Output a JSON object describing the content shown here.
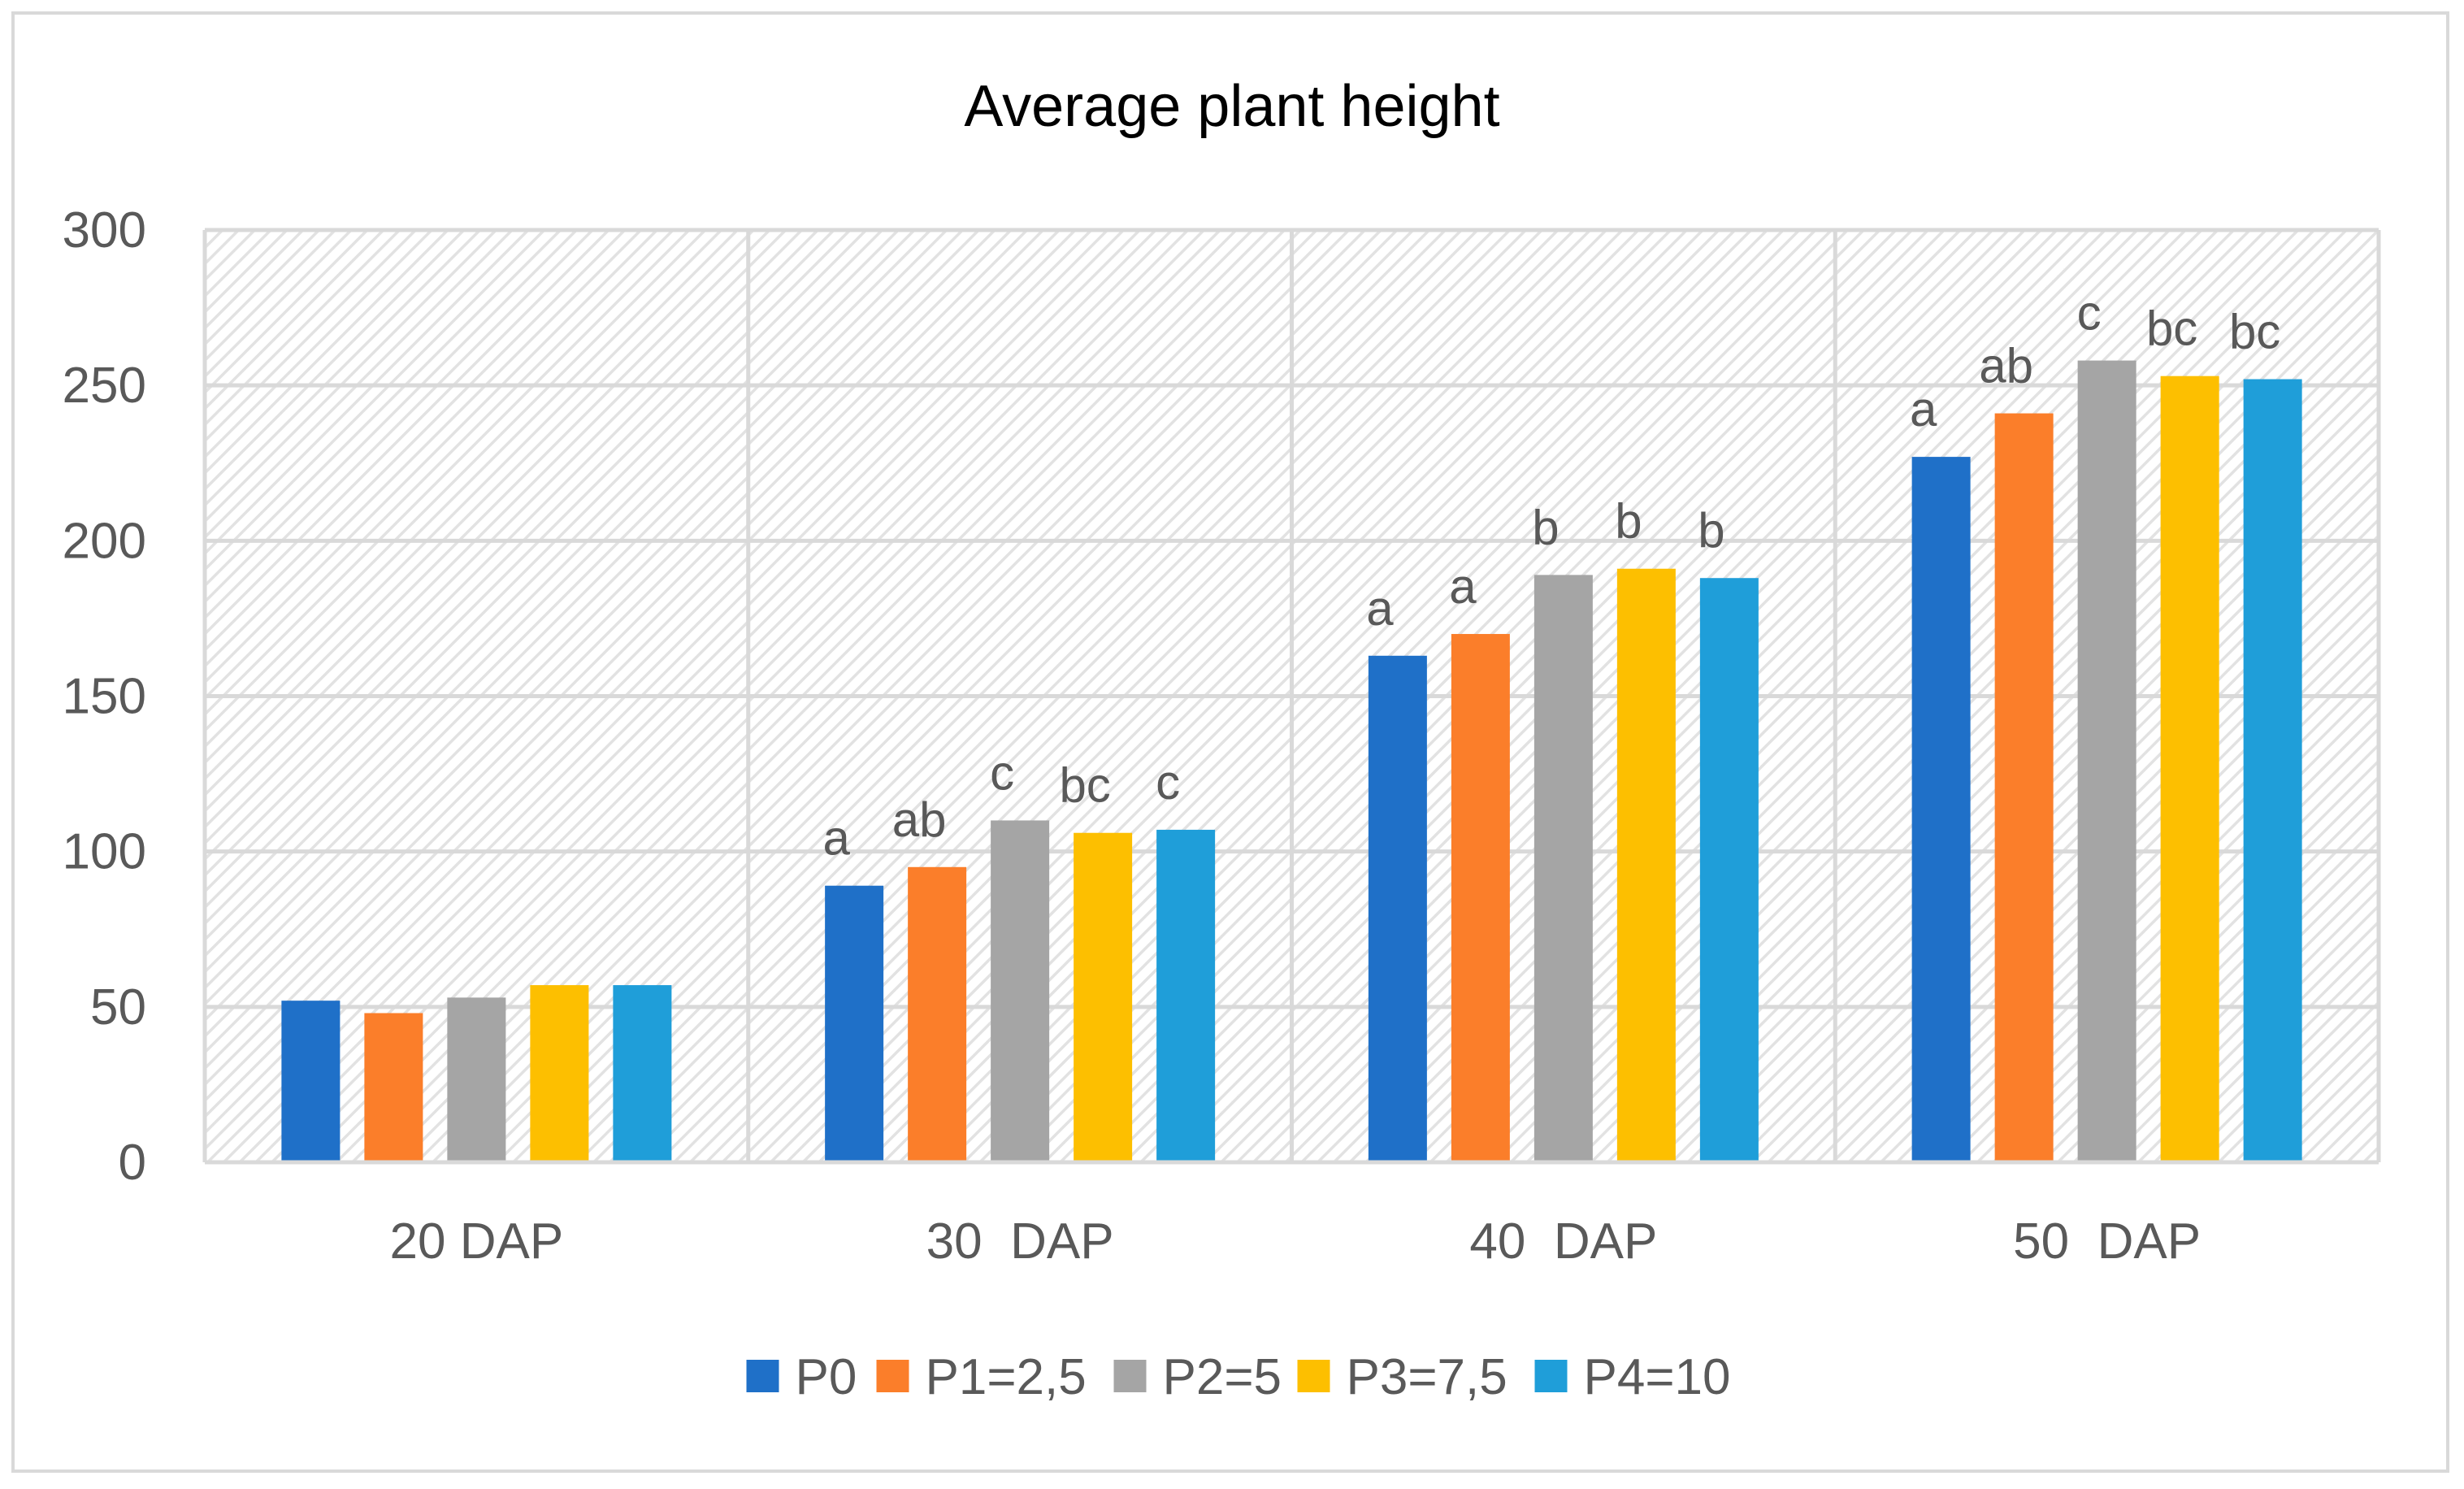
{
  "chart_data": {
    "type": "bar",
    "title": "Average plant height",
    "xlabel": "",
    "ylabel": "",
    "ylim": [
      0,
      300
    ],
    "yticks": [
      0,
      50,
      100,
      150,
      200,
      250,
      300
    ],
    "grid": true,
    "legend_position": "bottom",
    "categories": [
      "20 DAP",
      "30  DAP",
      "40  DAP",
      "50  DAP"
    ],
    "series": [
      {
        "name": "P0",
        "color": "#1f70c8",
        "values": [
          52,
          89,
          163,
          227
        ],
        "labels": [
          "",
          "a",
          "a",
          "a"
        ]
      },
      {
        "name": "P1=2,5",
        "color": "#fb7e2a",
        "values": [
          48,
          95,
          170,
          241
        ],
        "labels": [
          "",
          "ab",
          "a",
          "ab"
        ]
      },
      {
        "name": "P2=5",
        "color": "#a5a5a5",
        "values": [
          53,
          110,
          189,
          258
        ],
        "labels": [
          "",
          "c",
          "b",
          "c"
        ]
      },
      {
        "name": "P3=7,5",
        "color": "#fdbf00",
        "values": [
          57,
          106,
          191,
          253
        ],
        "labels": [
          "",
          "bc",
          "b",
          "bc"
        ]
      },
      {
        "name": "P4=10",
        "color": "#1f9ed9",
        "values": [
          57,
          107,
          188,
          252
        ],
        "labels": [
          "",
          "c",
          "b",
          "bc"
        ]
      }
    ]
  }
}
